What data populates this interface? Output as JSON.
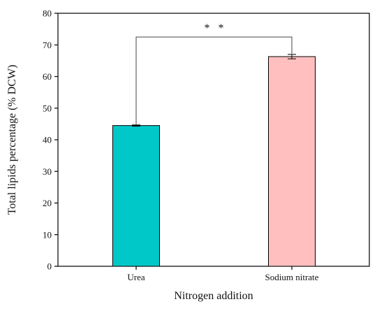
{
  "chart_data": {
    "type": "bar",
    "categories": [
      "Urea",
      "Sodium nitrate"
    ],
    "values": [
      44.5,
      66.3
    ],
    "errors": [
      0.2,
      0.7
    ],
    "colors": [
      "#00c8c8",
      "#ffbfbf"
    ],
    "xlabel": "Nitrogen addition",
    "ylabel": "Total lipids percentage (% DCW)",
    "ylim": [
      0,
      80
    ],
    "yticks": [
      0,
      10,
      20,
      30,
      40,
      50,
      60,
      70,
      80
    ],
    "grid": false,
    "significance": {
      "label": "* *",
      "between": [
        0,
        1
      ],
      "bracket_top": 72.5
    }
  }
}
